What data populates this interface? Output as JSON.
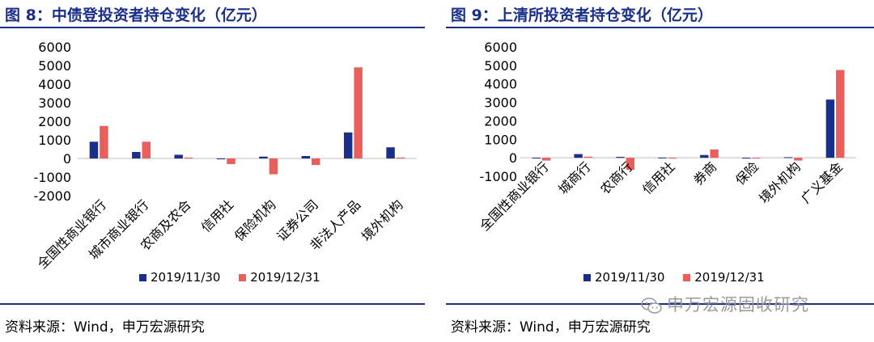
{
  "left": {
    "title": "图 8：中债登投资者持仓变化（亿元）",
    "source": "资料来源：Wind，申万宏源研究"
  },
  "right": {
    "title": "图 9：上清所投资者持仓变化（亿元）",
    "source": "资料来源：Wind，申万宏源研究"
  },
  "watermark": "申万宏源固收研究",
  "colors": {
    "series1": "#1a2f8a",
    "series2": "#e85f5c",
    "title": "#1a2f8a"
  },
  "chart_data": [
    {
      "type": "bar",
      "title": "图 8：中债登投资者持仓变化（亿元）",
      "categories": [
        "全国性商业银行",
        "城市商业银行",
        "农商及农合",
        "信用社",
        "保险机构",
        "证券公司",
        "非法人产品",
        "境外机构"
      ],
      "series": [
        {
          "name": "2019/11/30",
          "values": [
            900,
            350,
            200,
            -30,
            100,
            130,
            1400,
            600
          ]
        },
        {
          "name": "2019/12/31",
          "values": [
            1750,
            900,
            50,
            -300,
            -850,
            -350,
            4900,
            50
          ]
        }
      ],
      "yticks": [
        "6000",
        "5000",
        "4000",
        "3000",
        "2000",
        "1000",
        "0",
        "-1000",
        "-2000"
      ],
      "ylim": [
        -2000,
        6000
      ],
      "legend": "bottom"
    },
    {
      "type": "bar",
      "title": "图 9：上清所投资者持仓变化（亿元）",
      "categories": [
        "全国性商业银行",
        "城商行",
        "农商行",
        "信用社",
        "券商",
        "保险",
        "境外机构",
        "广义基金"
      ],
      "series": [
        {
          "name": "2019/11/30",
          "values": [
            -30,
            200,
            50,
            10,
            150,
            -40,
            30,
            3150
          ]
        },
        {
          "name": "2019/12/31",
          "values": [
            -150,
            60,
            -650,
            0,
            450,
            0,
            -150,
            4750
          ]
        }
      ],
      "yticks": [
        "6000",
        "5000",
        "4000",
        "3000",
        "2000",
        "1000",
        "0",
        "-1000"
      ],
      "ylim": [
        -1000,
        6000
      ],
      "legend": "bottom"
    }
  ]
}
